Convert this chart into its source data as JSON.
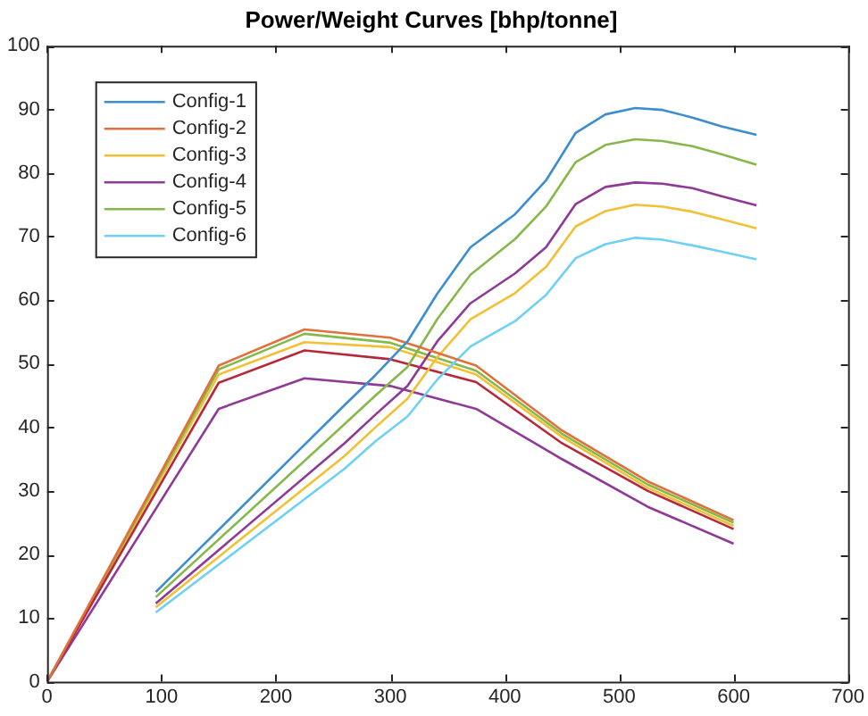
{
  "chart_data": {
    "type": "line",
    "title": "Power/Weight Curves [bhp/tonne]",
    "legend": "top left",
    "marker": "none",
    "line_style": "solid",
    "grid": false,
    "xlim": [
      0,
      700
    ],
    "xticks": [
      0,
      100,
      200,
      300,
      400,
      500,
      600,
      700
    ],
    "ylim": [
      0,
      100
    ],
    "yticks": [
      0,
      10,
      20,
      30,
      40,
      50,
      60,
      70,
      80,
      90,
      100
    ],
    "series": [
      {
        "name": "Config-1",
        "color": "#3b8ed0",
        "x": [
          95,
          260,
          287,
          315,
          341,
          370,
          409,
          436,
          462,
          488,
          514,
          538,
          564,
          590,
          620
        ],
        "values": [
          14.1,
          43.5,
          48.2,
          53.5,
          61,
          68.3,
          73.5,
          78.8,
          86.3,
          89.2,
          90.2,
          89.9,
          88.7,
          87.3,
          86
        ]
      },
      {
        "name": "Config-2",
        "color": "#e0703c",
        "x": [
          0,
          150,
          225,
          300,
          375,
          450,
          525,
          600
        ],
        "values": [
          0,
          49.7,
          55.4,
          54.1,
          49.7,
          39.5,
          31.5,
          25.4
        ]
      },
      {
        "name": "Config-3",
        "color": "#f2c035",
        "x": [
          95,
          260,
          287,
          315,
          341,
          370,
          409,
          436,
          462,
          488,
          514,
          538,
          564,
          590,
          620
        ],
        "values": [
          11.7,
          35.5,
          40,
          44.5,
          51,
          57,
          61.1,
          65.2,
          71.6,
          74,
          75,
          74.7,
          73.9,
          72.7,
          71.3
        ]
      },
      {
        "name": "Config-4",
        "color": "#8e3a96",
        "x": [
          95,
          260,
          287,
          315,
          341,
          370,
          409,
          436,
          462,
          488,
          514,
          538,
          564,
          590,
          620
        ],
        "values": [
          12.3,
          37.5,
          42,
          46.5,
          53.5,
          59.5,
          64.2,
          68.3,
          75.1,
          77.8,
          78.5,
          78.3,
          77.6,
          76.3,
          74.9
        ]
      },
      {
        "name": "Config-5",
        "color": "#86b84a",
        "x": [
          95,
          260,
          287,
          315,
          341,
          370,
          409,
          436,
          462,
          488,
          514,
          538,
          564,
          590,
          620
        ],
        "values": [
          13.3,
          40.5,
          45,
          49.5,
          57,
          64,
          69.6,
          74.7,
          81.7,
          84.4,
          85.3,
          85,
          84.2,
          82.9,
          81.3
        ]
      },
      {
        "name": "Config-6",
        "color": "#6fd0f5",
        "x": [
          95,
          260,
          287,
          315,
          341,
          370,
          409,
          436,
          462,
          488,
          514,
          538,
          564,
          590,
          620
        ],
        "values": [
          10.9,
          33.5,
          37.8,
          41.7,
          47.5,
          52.7,
          56.7,
          60.8,
          66.6,
          68.8,
          69.8,
          69.5,
          68.6,
          67.6,
          66.4
        ]
      },
      {
        "color": "#b7283b",
        "x": [
          0,
          150,
          225,
          300,
          375,
          450,
          525,
          600
        ],
        "values": [
          0,
          47,
          52.1,
          50.7,
          47.1,
          37.5,
          30,
          24
        ]
      },
      {
        "color": "#86b84a",
        "x": [
          0,
          150,
          225,
          300,
          375,
          450,
          525,
          600
        ],
        "values": [
          0,
          49.1,
          54.7,
          53.3,
          48.9,
          39,
          31,
          25
        ]
      },
      {
        "color": "#f2c035",
        "x": [
          0,
          150,
          225,
          300,
          375,
          450,
          525,
          600
        ],
        "values": [
          0,
          48.3,
          53.4,
          52.6,
          48.3,
          38.5,
          30.5,
          24.5
        ]
      },
      {
        "color": "#8e3a96",
        "x": [
          0,
          150,
          225,
          300,
          375,
          450,
          525,
          600
        ],
        "values": [
          0,
          42.9,
          47.7,
          46.5,
          42.9,
          35,
          27.5,
          21.7
        ]
      }
    ]
  }
}
